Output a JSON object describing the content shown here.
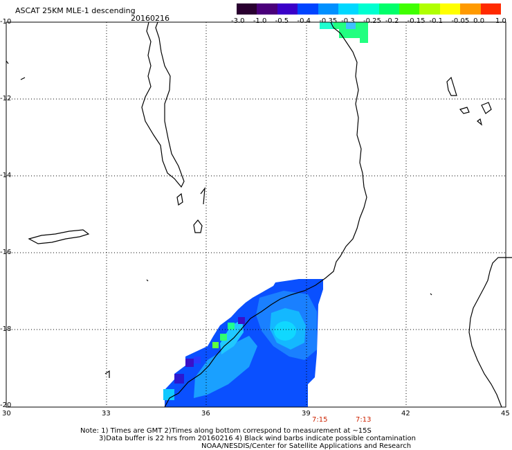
{
  "header": {
    "title": "ASCAT 25KM MLE-1 descending",
    "date": "20160216"
  },
  "colorbar": {
    "labels": [
      "-3.0",
      "-1.0",
      "-0.5",
      "-0.4",
      "-0.35",
      "-0.3",
      "-0.25",
      "-0.2",
      "-0.15",
      "-0.1",
      "-0.05",
      "0.0",
      "1.0"
    ],
    "colors": [
      "#2a0030",
      "#4a007a",
      "#3a00c8",
      "#0044ff",
      "#0090ff",
      "#00d8ff",
      "#00ffd0",
      "#00ff6a",
      "#40ff00",
      "#b0ff00",
      "#ffff00",
      "#ff9a00",
      "#ff2a00"
    ]
  },
  "axes": {
    "x_ticks": [
      "30",
      "33",
      "36",
      "39",
      "42",
      "45"
    ],
    "y_ticks": [
      "-10",
      "-12",
      "-14",
      "-16",
      "-18",
      "-20"
    ]
  },
  "times": [
    "7:15",
    "7:13"
  ],
  "notes": {
    "line1": "Note: 1) Times are GMT 2)Times along bottom correspond to measurement at ~15S",
    "line2": "3)Data buffer is 22 hrs from 20160216 4) Black wind barbs indicate possible contamination",
    "line3": "NOAA/NESDIS/Center for Satellite Applications and Research"
  },
  "colors": {
    "coast": "#000000",
    "grid": "#000000",
    "swath_blue": "#0a50ff",
    "swath_light": "#1aa8ff",
    "swath_cyan": "#10d0ff",
    "swath_green": "#20ff80",
    "swath_dark": "#3a10c8",
    "time_red": "#cc2200"
  }
}
